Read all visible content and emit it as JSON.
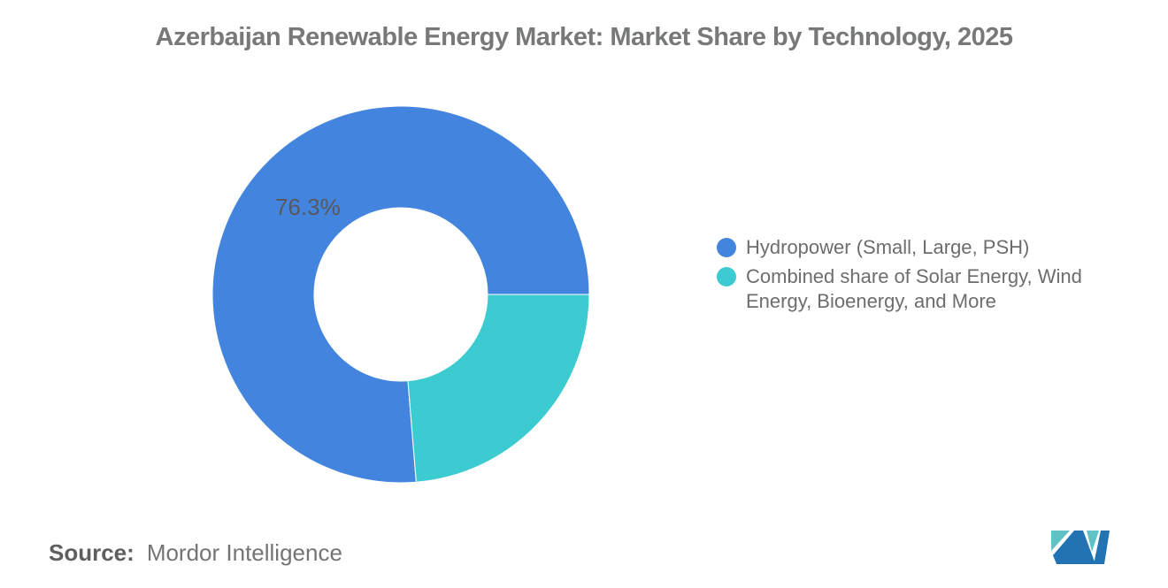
{
  "title": "Azerbaijan Renewable Energy Market: Market Share by Technology, 2025",
  "chart_data": {
    "type": "pie",
    "subtype": "donut",
    "title": "Azerbaijan Renewable Energy Market: Market Share by Technology, 2025",
    "start_angle_deg": 175.32,
    "legend_position": "right",
    "slice_label_color": "#58585a",
    "series": [
      {
        "name": "Hydropower (Small, Large, PSH)",
        "value": 76.3,
        "color": "#4385de",
        "slice_label": "76.3%"
      },
      {
        "name": "Combined share of Solar Energy, Wind Energy, Bioenergy, and More",
        "value": 23.7,
        "color": "#3dcbd2",
        "slice_label": ""
      }
    ]
  },
  "source": {
    "label": "Source:",
    "value": "Mordor Intelligence"
  },
  "logo": {
    "name": "mordor-intelligence-logo",
    "blue": "#2173b3",
    "teal": "#5fc2c4"
  }
}
